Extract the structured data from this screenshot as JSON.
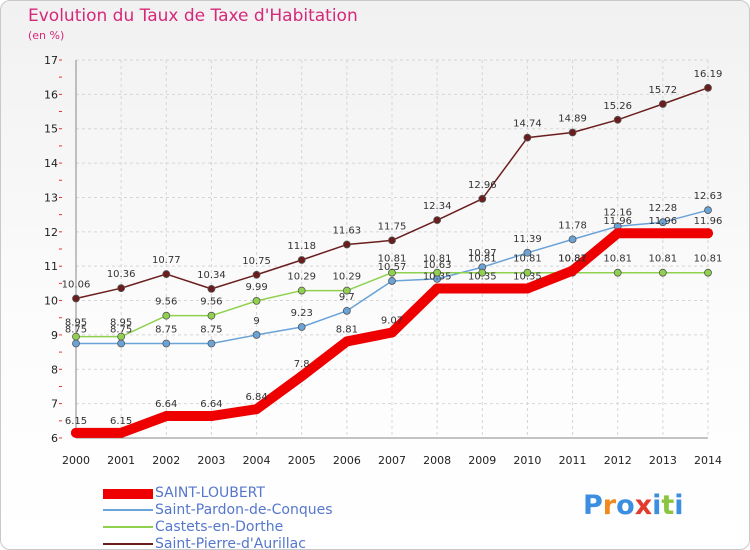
{
  "header": {
    "title": "Evolution du Taux de Taxe d'Habitation",
    "subtitle": "(en %)"
  },
  "logo": {
    "text": "Proxiti",
    "colors": [
      "#3b8ee0",
      "#f08a1c",
      "#3b8ee0",
      "#e23b2e",
      "#3b8ee0",
      "#8bc43f",
      "#3b8ee0"
    ]
  },
  "chart_data": {
    "type": "line",
    "title": "Evolution du Taux de Taxe d'Habitation",
    "subtitle": "(en %)",
    "x": [
      "2000",
      "2001",
      "2002",
      "2003",
      "2004",
      "2005",
      "2006",
      "2007",
      "2008",
      "2009",
      "2010",
      "2011",
      "2012",
      "2013",
      "2014"
    ],
    "ylim": [
      6,
      17
    ],
    "yticks": [
      "6",
      "7",
      "8",
      "9",
      "10",
      "11",
      "12",
      "13",
      "14",
      "15",
      "16",
      "17"
    ],
    "grid": true,
    "legend_position": "bottom-left",
    "series": [
      {
        "name": "SAINT-LOUBERT",
        "color": "#ee0000",
        "values": [
          6.15,
          6.15,
          6.64,
          6.64,
          6.84,
          7.8,
          8.81,
          9.07,
          10.35,
          10.35,
          10.35,
          10.87,
          11.96,
          11.96,
          11.96
        ],
        "labels": [
          "6.15",
          "6.15",
          "6.64",
          "6.64",
          "6.84",
          "7.8",
          "8.81",
          "9.07",
          "10.35",
          "10.35",
          "10.35",
          "10.87",
          "11.96",
          "11.96",
          "11.96"
        ]
      },
      {
        "name": "Saint-Pardon-de-Conques",
        "color": "#6aa3d8",
        "values": [
          8.75,
          8.75,
          8.75,
          8.75,
          9,
          9.23,
          9.7,
          10.57,
          10.63,
          10.97,
          11.39,
          11.78,
          12.16,
          12.28,
          12.63
        ],
        "labels": [
          "8.75",
          "8.75",
          "8.75",
          "8.75",
          "9",
          "9.23",
          "9.7",
          "10.57",
          "10.63",
          "10.97",
          "11.39",
          "11.78",
          "12.16",
          "12.28",
          "12.63"
        ]
      },
      {
        "name": "Castets-en-Dorthe",
        "color": "#8fd14f",
        "values": [
          8.95,
          8.95,
          9.56,
          9.56,
          9.99,
          10.29,
          10.29,
          10.81,
          10.81,
          10.81,
          10.81,
          10.81,
          10.81,
          10.81,
          10.81
        ],
        "labels": [
          "8.95",
          "8.95",
          "9.56",
          "9.56",
          "9.99",
          "10.29",
          "10.29",
          "10.81",
          "10.81",
          "10.81",
          "10.81",
          "10.81",
          "10.81",
          "10.81",
          "10.81"
        ]
      },
      {
        "name": "Saint-Pierre-d'Aurillac",
        "color": "#6b1d1d",
        "values": [
          10.06,
          10.36,
          10.77,
          10.34,
          10.75,
          11.18,
          11.63,
          11.75,
          12.34,
          12.96,
          14.74,
          14.89,
          15.26,
          15.72,
          16.19
        ],
        "labels": [
          "10.06",
          "10.36",
          "10.77",
          "10.34",
          "10.75",
          "11.18",
          "11.63",
          "11.75",
          "12.34",
          "12.96",
          "14.74",
          "14.89",
          "15.26",
          "15.72",
          "16.19"
        ]
      }
    ]
  }
}
